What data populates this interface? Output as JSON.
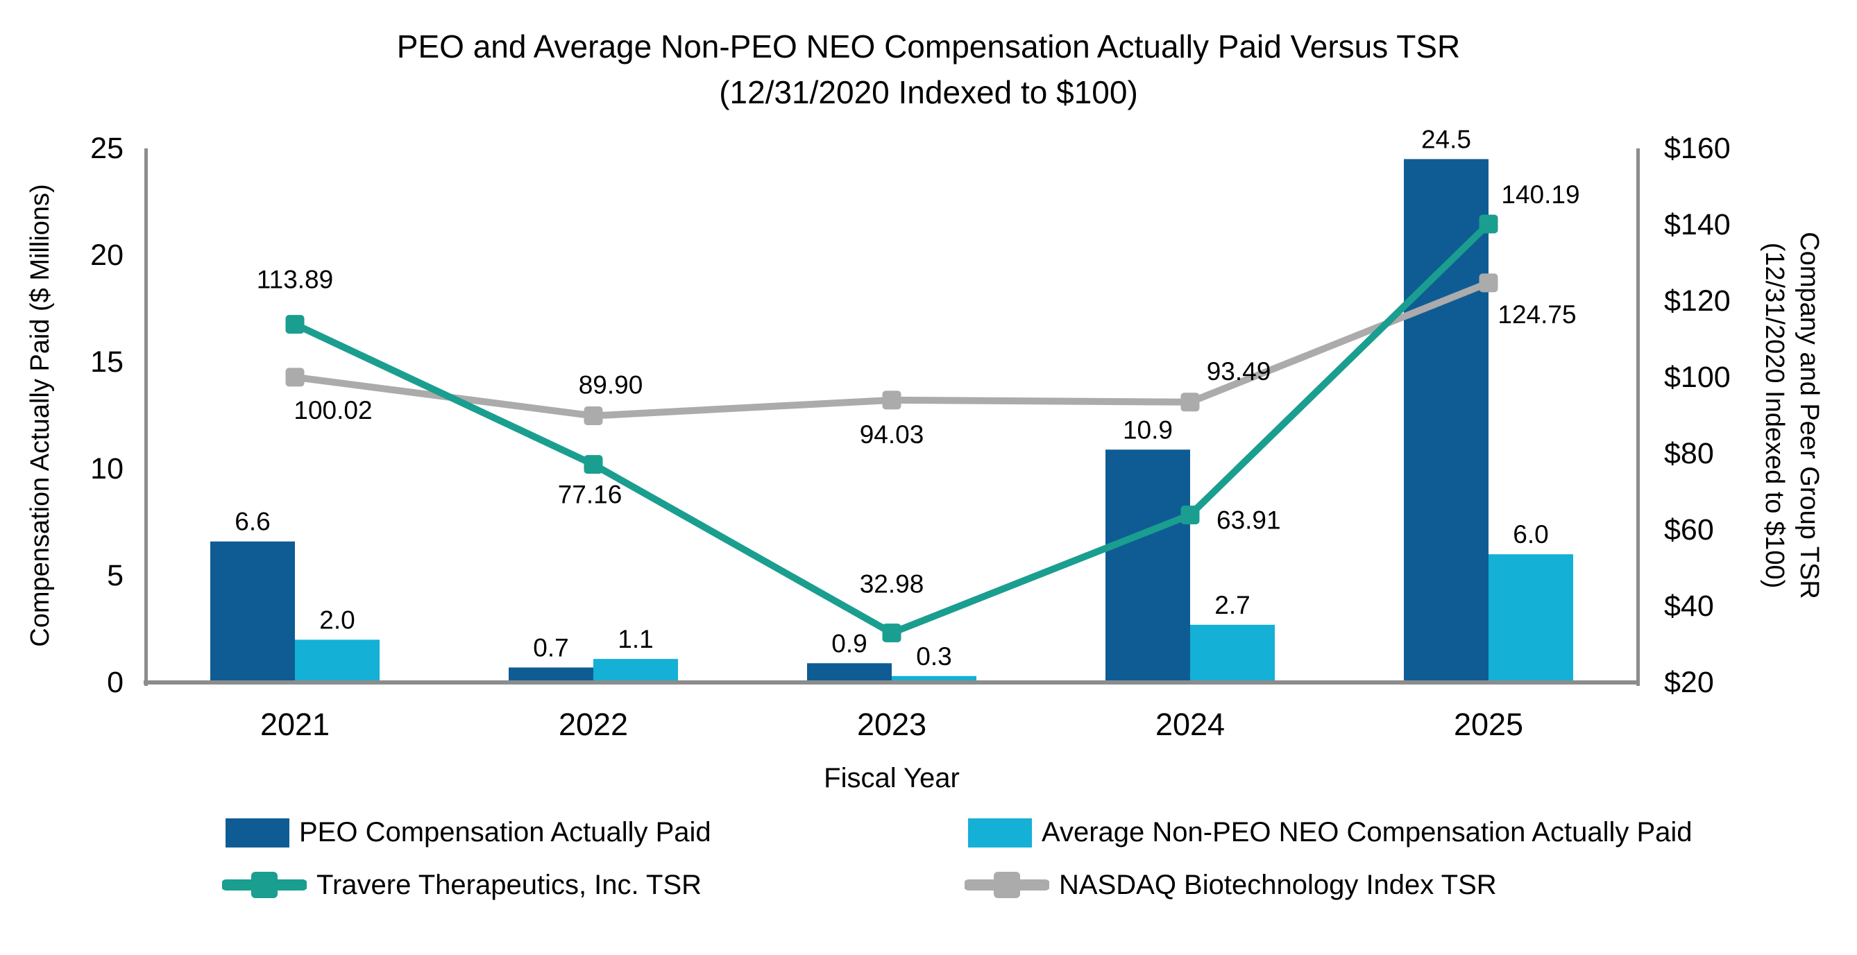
{
  "title": {
    "line1": "PEO and Average Non-PEO NEO Compensation Actually Paid Versus TSR",
    "line2": "(12/31/2020 Indexed to $100)"
  },
  "axes": {
    "left": {
      "title": "Compensation Actually Paid ($ Millions)",
      "tick_labels": [
        "25",
        "20",
        "15",
        "10",
        "5",
        "0"
      ]
    },
    "right": {
      "title_line1": "Company and Peer Group TSR",
      "title_line2": "(12/31/2020 Indexed to $100)",
      "tick_labels": [
        "$160",
        "$140",
        "$120",
        "$100",
        "$80",
        "$60",
        "$40",
        "$20"
      ]
    },
    "x": {
      "title": "Fiscal Year"
    }
  },
  "colors": {
    "peo_bar": "#0F5C94",
    "non_peo_bar": "#14B0D6",
    "travere_line": "#1A9E8F",
    "nasdaq_line": "#ABABAB",
    "axis_line": "#8C8C8C",
    "label_text": "#000000"
  },
  "chart_data": {
    "type": "combo bar + line",
    "categories": [
      "2021",
      "2022",
      "2023",
      "2024",
      "2025"
    ],
    "xlabel": "Fiscal Year",
    "ylabel_left": "Compensation Actually Paid ($ Millions)",
    "ylabel_right": "Company and Peer Group TSR (12/31/2020 Indexed to $100)",
    "ylim_left": [
      0,
      25
    ],
    "ylim_right": [
      20,
      160
    ],
    "grid": false,
    "legend_position": "bottom",
    "series": [
      {
        "name": "PEO Compensation Actually Paid",
        "type": "bar",
        "axis": "left",
        "color": "#0F5C94",
        "values": [
          6.6,
          0.7,
          0.9,
          10.9,
          24.5
        ],
        "labels": [
          "6.6",
          "0.7",
          "0.9",
          "10.9",
          "24.5"
        ],
        "label_color": "#000000"
      },
      {
        "name": "Average Non-PEO NEO Compensation Actually Paid",
        "type": "bar",
        "axis": "left",
        "color": "#14B0D6",
        "values": [
          2.0,
          1.1,
          0.3,
          2.7,
          6.0
        ],
        "labels": [
          "2.0",
          "1.1",
          "0.3",
          "2.7",
          "6.0"
        ],
        "label_color": "#000000"
      },
      {
        "name": "Travere Therapeutics, Inc. TSR",
        "type": "line",
        "axis": "right",
        "color": "#1A9E8F",
        "values": [
          113.89,
          77.16,
          32.98,
          63.91,
          140.19
        ],
        "labels": [
          "113.89",
          "77.16",
          "32.98",
          "63.91",
          "140.19"
        ],
        "label_color": "#1A9E8F",
        "label_offsets": [
          [
            0,
            -52
          ],
          [
            -5,
            56
          ],
          [
            0,
            -58
          ],
          [
            38,
            20
          ],
          [
            75,
            -30
          ]
        ],
        "label_anchors": [
          "middle",
          "middle",
          "middle",
          "start",
          "middle"
        ]
      },
      {
        "name": "NASDAQ Biotechnology Index TSR",
        "type": "line",
        "axis": "right",
        "color": "#ABABAB",
        "values": [
          100.02,
          89.9,
          94.03,
          93.49,
          124.75
        ],
        "labels": [
          "100.02",
          "89.90",
          "94.03",
          "93.49",
          "124.75"
        ],
        "label_color": "#000000",
        "label_offsets": [
          [
            55,
            60
          ],
          [
            25,
            -32
          ],
          [
            0,
            62
          ],
          [
            70,
            -32
          ],
          [
            70,
            58
          ]
        ],
        "label_anchors": [
          "middle",
          "middle",
          "middle",
          "middle",
          "middle"
        ]
      }
    ]
  }
}
